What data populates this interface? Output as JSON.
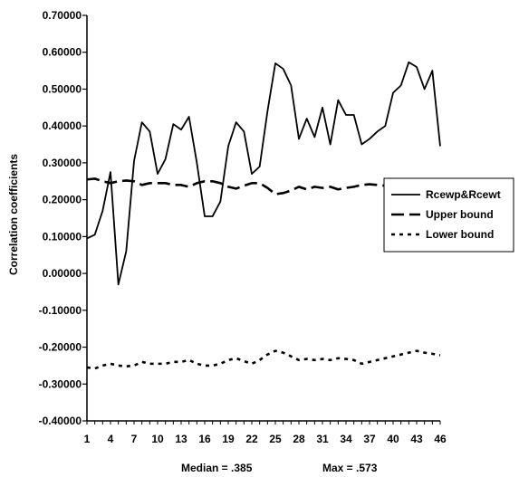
{
  "chart_data": {
    "type": "line",
    "title": "",
    "xlabel": "",
    "ylabel": "Correlation coefficients",
    "ylim": [
      -0.4,
      0.7
    ],
    "ytick_step": 0.1,
    "grid": false,
    "legend_position": "right",
    "x": [
      1,
      2,
      3,
      4,
      5,
      6,
      7,
      8,
      9,
      10,
      11,
      12,
      13,
      14,
      15,
      16,
      17,
      18,
      19,
      20,
      21,
      22,
      23,
      24,
      25,
      26,
      27,
      28,
      29,
      30,
      31,
      32,
      33,
      34,
      35,
      36,
      37,
      38,
      39,
      40,
      41,
      42,
      43,
      44,
      45,
      46
    ],
    "xticks": [
      1,
      4,
      7,
      10,
      13,
      16,
      19,
      22,
      25,
      28,
      31,
      34,
      37,
      40,
      43,
      46
    ],
    "series": [
      {
        "name": "Rcewp&Rcewt",
        "style": "solid",
        "color": "#000000",
        "values": [
          0.095,
          0.105,
          0.17,
          0.275,
          -0.03,
          0.06,
          0.305,
          0.41,
          0.385,
          0.27,
          0.31,
          0.405,
          0.39,
          0.425,
          0.3,
          0.155,
          0.155,
          0.195,
          0.345,
          0.41,
          0.385,
          0.27,
          0.29,
          0.44,
          0.57,
          0.555,
          0.51,
          0.365,
          0.42,
          0.37,
          0.45,
          0.35,
          0.47,
          0.43,
          0.43,
          0.35,
          0.365,
          0.385,
          0.4,
          0.49,
          0.51,
          0.573,
          0.56,
          0.5,
          0.55,
          0.345
        ]
      },
      {
        "name": "Upper bound",
        "style": "dashed",
        "color": "#000000",
        "values": [
          0.255,
          0.257,
          0.25,
          0.245,
          0.25,
          0.252,
          0.25,
          0.24,
          0.245,
          0.245,
          0.245,
          0.24,
          0.24,
          0.235,
          0.245,
          0.25,
          0.25,
          0.245,
          0.235,
          0.23,
          0.238,
          0.245,
          0.245,
          0.232,
          0.215,
          0.218,
          0.225,
          0.235,
          0.228,
          0.235,
          0.232,
          0.235,
          0.228,
          0.232,
          0.235,
          0.24,
          0.242,
          0.24,
          0.238,
          0.235,
          0.235,
          0.238,
          0.24,
          0.238,
          0.235,
          0.235
        ]
      },
      {
        "name": "Lower bound",
        "style": "dotted",
        "color": "#000000",
        "values": [
          -0.255,
          -0.258,
          -0.25,
          -0.245,
          -0.25,
          -0.252,
          -0.25,
          -0.24,
          -0.245,
          -0.245,
          -0.245,
          -0.24,
          -0.24,
          -0.235,
          -0.245,
          -0.25,
          -0.25,
          -0.245,
          -0.235,
          -0.23,
          -0.238,
          -0.245,
          -0.235,
          -0.22,
          -0.21,
          -0.215,
          -0.225,
          -0.235,
          -0.232,
          -0.235,
          -0.232,
          -0.235,
          -0.23,
          -0.232,
          -0.235,
          -0.245,
          -0.24,
          -0.235,
          -0.23,
          -0.225,
          -0.22,
          -0.215,
          -0.21,
          -0.215,
          -0.218,
          -0.222
        ]
      }
    ],
    "annotations": [
      "Median = .385",
      "Max = .573"
    ]
  }
}
